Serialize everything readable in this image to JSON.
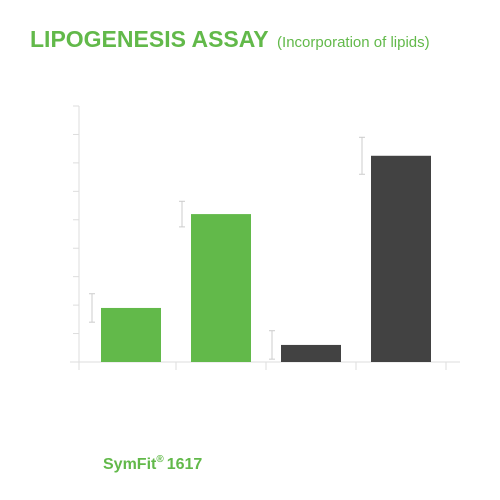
{
  "chart_data": {
    "type": "bar",
    "title": "LIPOGENESIS ASSAY",
    "subtitle": "(Incorporation of lipids)",
    "categories": [
      null,
      null,
      null,
      null
    ],
    "values": [
      1.9,
      5.2,
      0.6,
      7.25
    ],
    "errors": [
      0.5,
      0.45,
      0.5,
      0.65
    ],
    "colors": [
      "#62b94a",
      "#62b94a",
      "#424242",
      "#424242"
    ],
    "ylim": [
      0,
      9
    ],
    "yticks": [
      0,
      1,
      2,
      3,
      4,
      5,
      6,
      7,
      8,
      9
    ],
    "annotation": [
      "SymFit",
      "®",
      "1617"
    ]
  }
}
